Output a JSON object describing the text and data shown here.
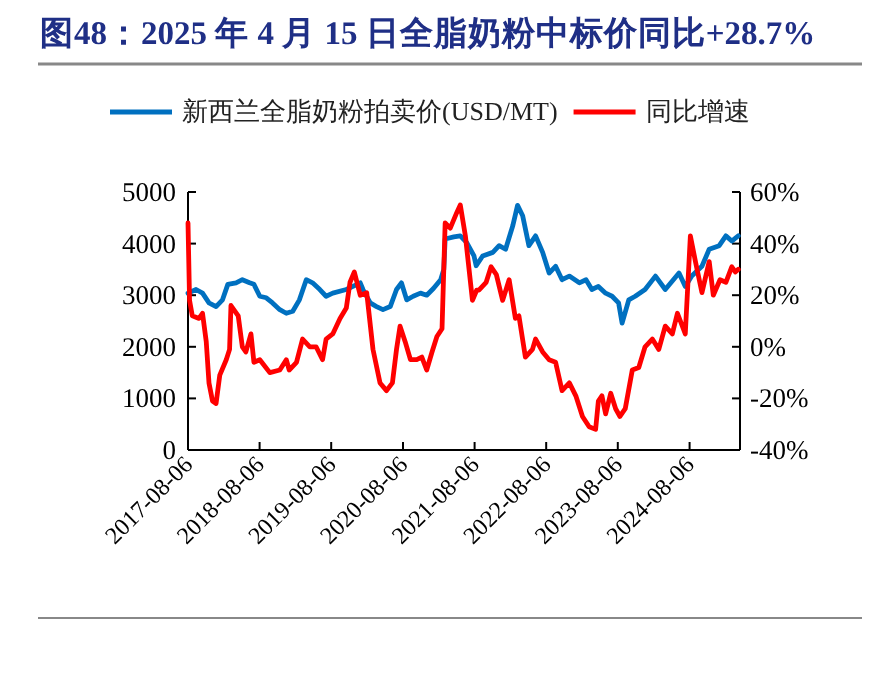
{
  "chart_data": {
    "type": "line",
    "title": "图48：2025 年 4 月 15 日全脂奶粉中标价同比+28.7%",
    "legend": "top",
    "grid": false,
    "line_style": "solid",
    "marker": "none",
    "xlim": [
      "2017-08-06",
      "2025-04-20"
    ],
    "xticks": [
      "2017-08-06",
      "2018-08-06",
      "2019-08-06",
      "2020-08-06",
      "2021-08-06",
      "2022-08-06",
      "2023-08-06",
      "2024-08-06"
    ],
    "ylim": [
      0,
      5000
    ],
    "yticks": [
      0,
      1000,
      2000,
      3000,
      4000,
      5000
    ],
    "y2lim": [
      -40,
      60
    ],
    "y2ticks": [
      {
        "value": -40,
        "label": "-40%"
      },
      {
        "value": -20,
        "label": "-20%"
      },
      {
        "value": 0,
        "label": "0%"
      },
      {
        "value": 20,
        "label": "20%"
      },
      {
        "value": 40,
        "label": "40%"
      },
      {
        "value": 60,
        "label": "60%"
      }
    ],
    "series": [
      {
        "name": "新西兰全脂奶粉拍卖价(USD/MT)",
        "color": "#0070c0",
        "axis": "y",
        "x": [
          "2017-08-06",
          "2017-09-16",
          "2017-10-19",
          "2017-11-21",
          "2017-12-27",
          "2018-01-29",
          "2018-02-25",
          "2018-04-08",
          "2018-05-10",
          "2018-06-16",
          "2018-07-08",
          "2018-08-07",
          "2018-09-09",
          "2018-10-11",
          "2018-11-17",
          "2018-12-20",
          "2019-01-22",
          "2019-02-25",
          "2019-04-01",
          "2019-05-03",
          "2019-06-09",
          "2019-07-11",
          "2019-08-14",
          "2019-10-22",
          "2019-11-25",
          "2020-01-01",
          "2020-01-15",
          "2020-02-21",
          "2020-03-24",
          "2020-04-26",
          "2020-06-02",
          "2020-07-04",
          "2020-07-29",
          "2020-08-25",
          "2020-09-27",
          "2020-11-03",
          "2020-12-05",
          "2021-01-08",
          "2021-02-14",
          "2021-03-02",
          "2021-03-09",
          "2021-04-22",
          "2021-05-25",
          "2021-06-27",
          "2021-08-03",
          "2021-08-14",
          "2021-09-16",
          "2021-11-07",
          "2021-12-09",
          "2022-01-11",
          "2022-02-17",
          "2022-03-13",
          "2022-04-08",
          "2022-05-10",
          "2022-06-13",
          "2022-07-19",
          "2022-08-21",
          "2022-09-23",
          "2022-10-26",
          "2022-12-02",
          "2023-01-22",
          "2023-02-25",
          "2023-03-27",
          "2023-04-29",
          "2023-06-05",
          "2023-07-08",
          "2023-08-10",
          "2023-08-28",
          "2023-10-01",
          "2023-11-03",
          "2023-12-23",
          "2024-02-14",
          "2024-04-04",
          "2024-06-13",
          "2024-07-15",
          "2024-08-17",
          "2024-10-08",
          "2024-11-14",
          "2025-01-04",
          "2025-02-07",
          "2025-03-09",
          "2025-04-11"
        ],
        "values": [
          3040,
          3110,
          3040,
          2850,
          2780,
          2910,
          3210,
          3240,
          3300,
          3240,
          3210,
          2980,
          2950,
          2850,
          2720,
          2650,
          2690,
          2910,
          3300,
          3240,
          3110,
          2980,
          3040,
          3110,
          3170,
          3240,
          3110,
          2850,
          2780,
          2720,
          2780,
          3110,
          3240,
          2910,
          2980,
          3040,
          3000,
          3130,
          3300,
          3500,
          4090,
          4130,
          4150,
          4020,
          3760,
          3570,
          3760,
          3830,
          3960,
          3890,
          4350,
          4740,
          4540,
          3960,
          4150,
          3830,
          3430,
          3560,
          3300,
          3370,
          3240,
          3300,
          3110,
          3170,
          3040,
          2980,
          2850,
          2460,
          2910,
          2980,
          3110,
          3370,
          3110,
          3430,
          3170,
          3370,
          3560,
          3890,
          3960,
          4150,
          4050,
          4150
        ]
      },
      {
        "name": "同比增速",
        "color": "#ff0000",
        "axis": "y2",
        "x": [
          "2017-08-06",
          "2017-08-14",
          "2017-08-28",
          "2017-10-01",
          "2017-10-19",
          "2017-11-07",
          "2017-11-21",
          "2017-12-09",
          "2017-12-27",
          "2018-01-15",
          "2018-02-17",
          "2018-03-06",
          "2018-03-13",
          "2018-04-19",
          "2018-05-10",
          "2018-05-28",
          "2018-06-23",
          "2018-07-08",
          "2018-08-07",
          "2018-09-27",
          "2018-11-17",
          "2018-12-20",
          "2019-01-04",
          "2019-02-10",
          "2019-03-13",
          "2019-04-19",
          "2019-05-21",
          "2019-06-23",
          "2019-07-11",
          "2019-08-14",
          "2019-09-20",
          "2019-10-22",
          "2019-11-10",
          "2019-12-02",
          "2020-01-01",
          "2020-02-03",
          "2020-03-06",
          "2020-04-11",
          "2020-05-14",
          "2020-06-13",
          "2020-07-04",
          "2020-07-22",
          "2020-08-17",
          "2020-09-13",
          "2020-10-15",
          "2020-11-10",
          "2020-12-05",
          "2021-01-01",
          "2021-01-26",
          "2021-02-21",
          "2021-03-09",
          "2021-04-04",
          "2021-05-07",
          "2021-05-25",
          "2021-06-20",
          "2021-07-26",
          "2021-08-17",
          "2021-08-28",
          "2021-10-04",
          "2021-10-29",
          "2021-11-25",
          "2021-12-27",
          "2022-01-29",
          "2022-03-02",
          "2022-03-20",
          "2022-04-22",
          "2022-05-28",
          "2022-06-13",
          "2022-07-19",
          "2022-08-21",
          "2022-09-23",
          "2022-10-26",
          "2022-12-02",
          "2023-01-04",
          "2023-02-07",
          "2023-03-13",
          "2023-04-15",
          "2023-04-29",
          "2023-05-17",
          "2023-06-05",
          "2023-07-01",
          "2023-07-26",
          "2023-08-17",
          "2023-09-13",
          "2023-10-19",
          "2023-11-21",
          "2023-12-23",
          "2024-01-29",
          "2024-03-02",
          "2024-04-04",
          "2024-05-10",
          "2024-06-05",
          "2024-07-15",
          "2024-08-10",
          "2024-09-05",
          "2024-10-08",
          "2024-11-14",
          "2024-12-05",
          "2025-01-08",
          "2025-02-07",
          "2025-03-09",
          "2025-03-27",
          "2025-04-11"
        ],
        "values": [
          48,
          18,
          12,
          11,
          13,
          2,
          -14,
          -21,
          -22,
          -11,
          -5,
          -1,
          16,
          12,
          0,
          -2,
          5,
          -6,
          -5,
          -10,
          -9,
          -5,
          -9,
          -6,
          3,
          0,
          0,
          -5,
          3,
          5,
          11,
          15,
          25,
          29,
          20,
          21,
          -1,
          -14,
          -17,
          -14,
          -1,
          8,
          2,
          -5,
          -5,
          -4,
          -9,
          -2,
          4,
          7,
          48,
          46,
          52,
          55,
          43,
          18,
          22,
          22,
          25,
          31,
          28,
          18,
          26,
          11,
          12,
          -4,
          -1,
          3,
          -2,
          -5,
          -6,
          -17,
          -14,
          -19,
          -27,
          -31,
          -32,
          -21,
          -19,
          -26,
          -18,
          -24,
          -27,
          -24,
          -9,
          -8,
          0,
          3,
          -1,
          8,
          5,
          13,
          5,
          43,
          33,
          21,
          33,
          20,
          26,
          25,
          31,
          29,
          30
        ]
      }
    ]
  }
}
